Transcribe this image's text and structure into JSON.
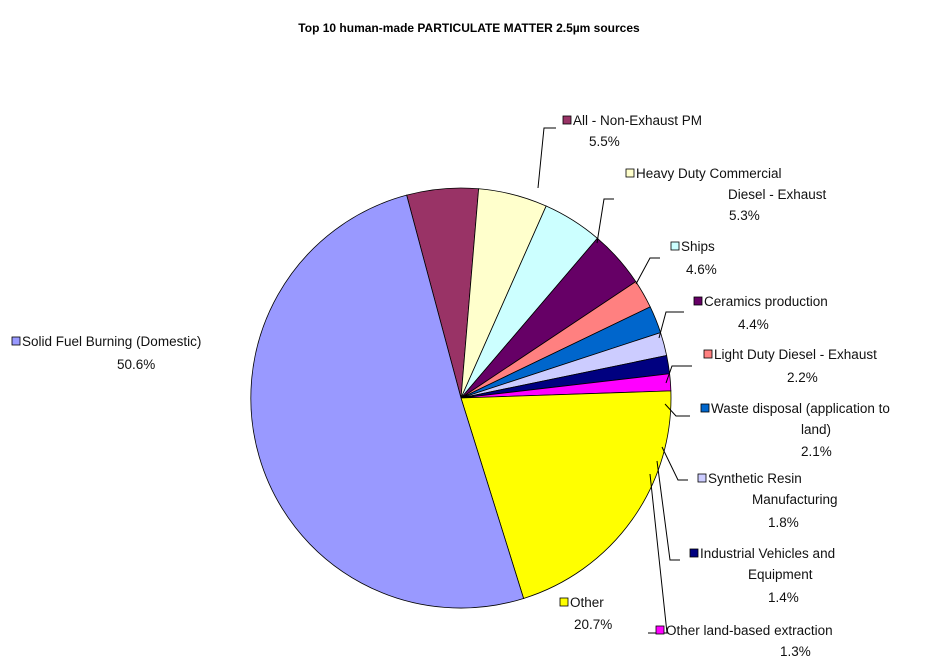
{
  "chart_data": {
    "type": "pie",
    "title": "Top 10 human-made PARTICULATE MATTER 2.5µm sources",
    "start_angle_deg": 345,
    "direction": "clockwise",
    "legend": "none",
    "series": [
      {
        "slices": [
          {
            "name": "All - Non-Exhaust PM",
            "value": 5.5,
            "value_label": "5.5%",
            "color": "#993366"
          },
          {
            "name": "Heavy Duty Commercial Diesel - Exhaust",
            "value": 5.3,
            "value_label": "5.3%",
            "color": "#ffffcc"
          },
          {
            "name": "Ships",
            "value": 4.6,
            "value_label": "4.6%",
            "color": "#ccffff"
          },
          {
            "name": "Ceramics production",
            "value": 4.4,
            "value_label": "4.4%",
            "color": "#660066"
          },
          {
            "name": "Light Duty Diesel - Exhaust",
            "value": 2.2,
            "value_label": "2.2%",
            "color": "#ff8080"
          },
          {
            "name": "Waste disposal (application to land)",
            "value": 2.1,
            "value_label": "2.1%",
            "color": "#0066cc"
          },
          {
            "name": "Synthetic Resin Manufacturing",
            "value": 1.8,
            "value_label": "1.8%",
            "color": "#ccccff"
          },
          {
            "name": "Industrial Vehicles and Equipment",
            "value": 1.4,
            "value_label": "1.4%",
            "color": "#000080"
          },
          {
            "name": "Other land-based extraction",
            "value": 1.3,
            "value_label": "1.3%",
            "color": "#ff00ff"
          },
          {
            "name": "Other",
            "value": 20.7,
            "value_label": "20.7%",
            "color": "#ffff00"
          },
          {
            "name": "Solid Fuel Burning (Domestic)",
            "value": 50.6,
            "value_label": "50.6%",
            "color": "#9999ff"
          }
        ]
      }
    ]
  }
}
